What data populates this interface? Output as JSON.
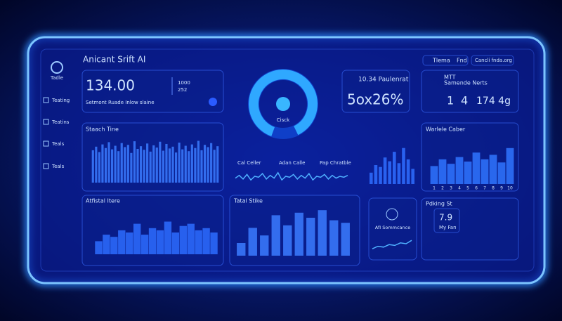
{
  "header": {
    "title": "Anicant Srift AI",
    "tabs": [
      "Tlema",
      "Fnd"
    ],
    "search": "Cancli fnda.org"
  },
  "sidebar": {
    "items": [
      "Tadle",
      "Teating",
      "Teatins",
      "Teals",
      "Teals"
    ]
  },
  "kpi_main": {
    "value": "134.00",
    "caption": "Setmont Ruade Inlow slaine",
    "side": [
      "1000",
      "252"
    ]
  },
  "donut": {
    "label": "Cisck"
  },
  "kpi_rate": {
    "title": "10.34 Paulenrat",
    "left": "5ox",
    "right": "26%"
  },
  "kpi_net": {
    "title": "MTT",
    "subtitle": "Samende Nerts",
    "values": [
      "1",
      "4",
      "174 4g"
    ]
  },
  "stock": {
    "title": "Staach Tine",
    "values": [
      72,
      80,
      68,
      85,
      77,
      90,
      74,
      82,
      70,
      88,
      79,
      84,
      66,
      92,
      75,
      81,
      73,
      87,
      69,
      83,
      78,
      91,
      71,
      86,
      76,
      80,
      67,
      89,
      74,
      82,
      70,
      85,
      77,
      93,
      72,
      84,
      79,
      88,
      73,
      81
    ]
  },
  "wave": {
    "labels": [
      "Cal Celler",
      "Adan Calle",
      "Pap Chratble"
    ],
    "values": [
      40,
      55,
      35,
      60,
      30,
      50,
      45,
      65,
      35,
      55,
      40,
      70,
      30,
      50,
      45,
      60,
      35,
      55,
      40,
      65,
      30,
      50,
      45,
      60,
      35,
      55,
      40,
      50,
      45,
      55
    ]
  },
  "mini_bars": {
    "values": [
      30,
      50,
      45,
      70,
      60,
      85,
      55,
      95,
      65,
      40
    ]
  },
  "weekly": {
    "title": "Warlele Caber",
    "categories": [
      "1",
      "2",
      "3",
      "4",
      "5",
      "6",
      "7",
      "8",
      "9",
      "10"
    ],
    "values": [
      40,
      55,
      45,
      60,
      50,
      70,
      55,
      65,
      48,
      80
    ]
  },
  "actual": {
    "title": "Atfistal Itere",
    "values": [
      30,
      45,
      40,
      55,
      50,
      70,
      45,
      60,
      55,
      75,
      50,
      65,
      70,
      55,
      60,
      50
    ]
  },
  "total": {
    "title": "Tatal Stike",
    "values": [
      25,
      55,
      40,
      80,
      60,
      85,
      75,
      90,
      70,
      65
    ]
  },
  "score": {
    "title": "AfI Sommcance",
    "values": [
      20,
      35,
      30,
      45,
      40,
      55,
      50,
      70
    ]
  },
  "parking": {
    "title": "Pdking St",
    "value": "7.9",
    "caption": "My Fan"
  }
}
